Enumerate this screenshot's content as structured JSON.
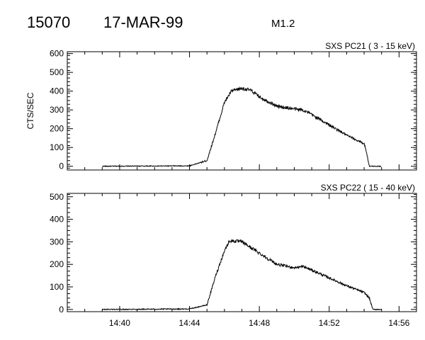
{
  "header": {
    "event_number": "15070",
    "date": "17-MAR-99",
    "flare_class": "M1.2"
  },
  "chart_data": [
    {
      "type": "line",
      "title": "SXS PC21  (  3 - 15 keV)",
      "ylabel": "CTS/SEC",
      "xlabel": "",
      "xlim": [
        "14:37",
        "14:57"
      ],
      "ylim": [
        -20,
        610
      ],
      "y_ticks": [
        0,
        100,
        200,
        300,
        400,
        500,
        600
      ],
      "x_ticks": [
        "14:40",
        "14:44",
        "14:48",
        "14:52",
        "14:56"
      ],
      "x_tick_labels_shown": false,
      "noise": 9,
      "series": [
        {
          "x": [
            "14:39",
            "14:44",
            "14:45",
            "14:45.5",
            "14:46",
            "14:46.4",
            "14:47",
            "14:47.5",
            "14:48",
            "14:49",
            "14:50",
            "14:50.5",
            "14:51",
            "14:52",
            "14:53",
            "14:54",
            "14:54.1",
            "14:54.3",
            "14:55"
          ],
          "values": [
            0,
            2,
            30,
            180,
            340,
            400,
            415,
            405,
            370,
            320,
            305,
            300,
            275,
            220,
            165,
            120,
            90,
            0,
            0
          ]
        }
      ]
    },
    {
      "type": "line",
      "title": "SXS PC22  ( 15 - 40 keV)",
      "ylabel": "",
      "xlabel": "",
      "xlim": [
        "14:37",
        "14:57"
      ],
      "ylim": [
        -10,
        515
      ],
      "y_ticks": [
        0,
        100,
        200,
        300,
        400,
        500
      ],
      "x_ticks": [
        "14:40",
        "14:44",
        "14:48",
        "14:52",
        "14:56"
      ],
      "x_tick_labels_shown": true,
      "noise": 8,
      "series": [
        {
          "x": [
            "14:39",
            "14:44",
            "14:45",
            "14:45.5",
            "14:46",
            "14:46.3",
            "14:47",
            "14:48",
            "14:49",
            "14:50",
            "14:50.5",
            "14:51",
            "14:52",
            "14:53",
            "14:54",
            "14:54.3",
            "14:54.5",
            "14:55"
          ],
          "values": [
            0,
            2,
            20,
            150,
            260,
            305,
            300,
            250,
            200,
            185,
            190,
            175,
            140,
            105,
            75,
            50,
            0,
            0
          ]
        }
      ]
    }
  ]
}
